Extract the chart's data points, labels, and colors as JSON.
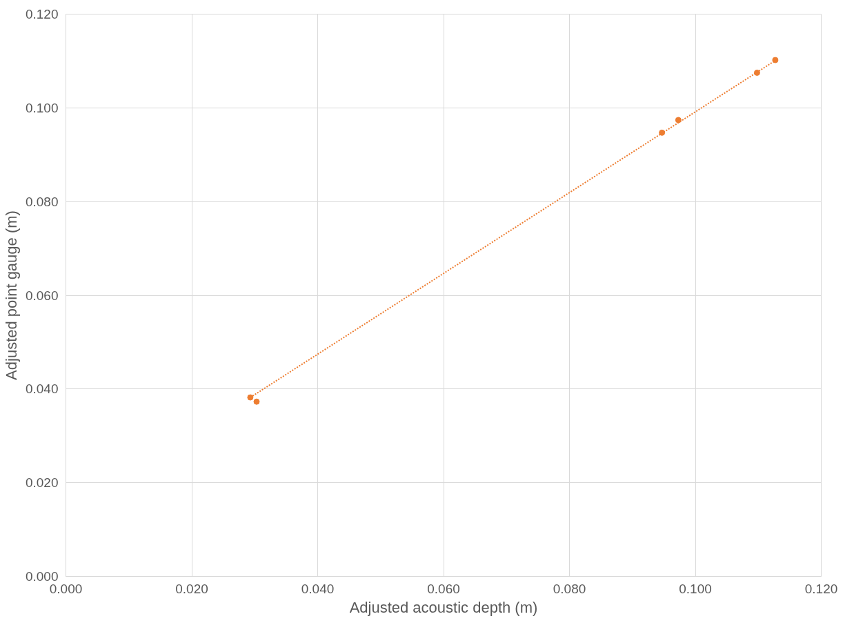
{
  "chart_data": {
    "type": "scatter",
    "xlabel": "Adjusted acoustic depth (m)",
    "ylabel": "Adjusted point gauge (m)",
    "series": [
      {
        "color": "#ed7d31",
        "marker": "circle",
        "x": [
          0.0293,
          0.0303,
          0.0947,
          0.0973,
          0.1098,
          0.1127
        ],
        "values": [
          0.0382,
          0.0373,
          0.0947,
          0.0974,
          0.1075,
          0.1102
        ]
      },
      {
        "type": "line",
        "color": "#ed7d31",
        "line_style": "dotted",
        "marker": "none",
        "x": [
          0.0293,
          0.1127
        ],
        "values": [
          0.0382,
          0.1101
        ]
      }
    ],
    "xlim": [
      0,
      0.12
    ],
    "ylim": [
      0,
      0.12
    ],
    "xticks": [
      {
        "value": 0,
        "label": "0.000"
      },
      {
        "value": 0.02,
        "label": "0.020"
      },
      {
        "value": 0.04,
        "label": "0.040"
      },
      {
        "value": 0.06,
        "label": "0.060"
      },
      {
        "value": 0.08,
        "label": "0.080"
      },
      {
        "value": 0.1,
        "label": "0.100"
      },
      {
        "value": 0.12,
        "label": "0.120"
      }
    ],
    "yticks": [
      {
        "value": 0,
        "label": "0.000"
      },
      {
        "value": 0.02,
        "label": "0.020"
      },
      {
        "value": 0.04,
        "label": "0.040"
      },
      {
        "value": 0.06,
        "label": "0.060"
      },
      {
        "value": 0.08,
        "label": "0.080"
      },
      {
        "value": 0.1,
        "label": "0.100"
      },
      {
        "value": 0.12,
        "label": "0.120"
      }
    ],
    "grid": true
  }
}
